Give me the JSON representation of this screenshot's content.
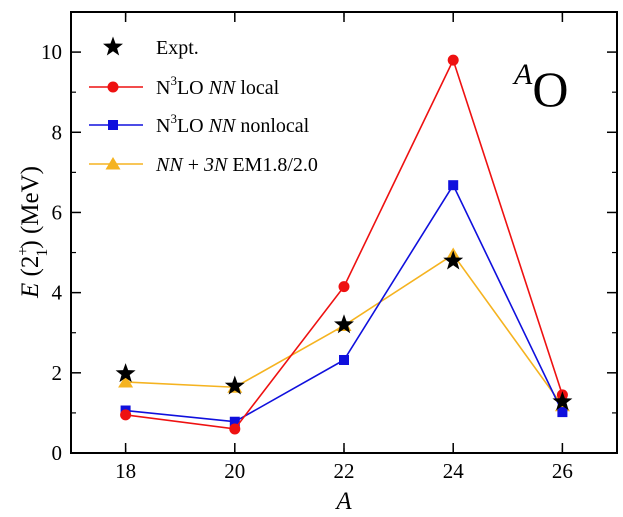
{
  "chart_data": {
    "type": "line",
    "xlabel": "A",
    "ylabel": {
      "var": "E",
      "open": " (2",
      "sup": "+",
      "sub": "1",
      "close": ") (MeV)"
    },
    "annotation": {
      "sup": "A",
      "main": "O"
    },
    "xlim": [
      17,
      27
    ],
    "ylim": [
      0,
      11
    ],
    "xticks": [
      18,
      20,
      22,
      24,
      26
    ],
    "yticks": [
      0,
      2,
      4,
      6,
      8,
      10
    ],
    "grid": false,
    "legend_position": "top-left",
    "series": [
      {
        "key": "expt",
        "legend": {
          "parts": [
            {
              "text": "Expt.",
              "italic": false
            }
          ]
        },
        "color": "#000000",
        "marker": "star",
        "line": false,
        "x": [
          18,
          20,
          22,
          24,
          26
        ],
        "y": [
          1.98,
          1.67,
          3.2,
          4.79,
          1.28
        ]
      },
      {
        "key": "n3lo-local",
        "legend": {
          "parts": [
            {
              "text": "N",
              "italic": false
            },
            {
              "text": "3",
              "italic": false,
              "sup": true
            },
            {
              "text": "LO ",
              "italic": false
            },
            {
              "text": "NN",
              "italic": true
            },
            {
              "text": " local",
              "italic": false
            }
          ]
        },
        "color": "#ee1111",
        "marker": "circle",
        "line": true,
        "x": [
          18,
          20,
          22,
          24,
          26
        ],
        "y": [
          0.95,
          0.6,
          4.15,
          9.8,
          1.45
        ]
      },
      {
        "key": "n3lo-nonlocal",
        "legend": {
          "parts": [
            {
              "text": "N",
              "italic": false
            },
            {
              "text": "3",
              "italic": false,
              "sup": true
            },
            {
              "text": "LO ",
              "italic": false
            },
            {
              "text": "NN",
              "italic": true
            },
            {
              "text": " nonlocal",
              "italic": false
            }
          ]
        },
        "color": "#1010dd",
        "marker": "square",
        "line": true,
        "x": [
          18,
          20,
          22,
          24,
          26
        ],
        "y": [
          1.06,
          0.78,
          2.32,
          6.68,
          1.02
        ]
      },
      {
        "key": "nn-3n",
        "legend": {
          "parts": [
            {
              "text": "NN",
              "italic": true
            },
            {
              "text": " + ",
              "italic": false
            },
            {
              "text": "3N",
              "italic": true
            },
            {
              "text": "   EM1.8/2.0",
              "italic": false
            }
          ]
        },
        "color": "#f5b320",
        "marker": "triangle",
        "line": true,
        "x": [
          18,
          20,
          22,
          24,
          26
        ],
        "y": [
          1.77,
          1.64,
          3.18,
          4.95,
          1.18
        ]
      }
    ]
  }
}
